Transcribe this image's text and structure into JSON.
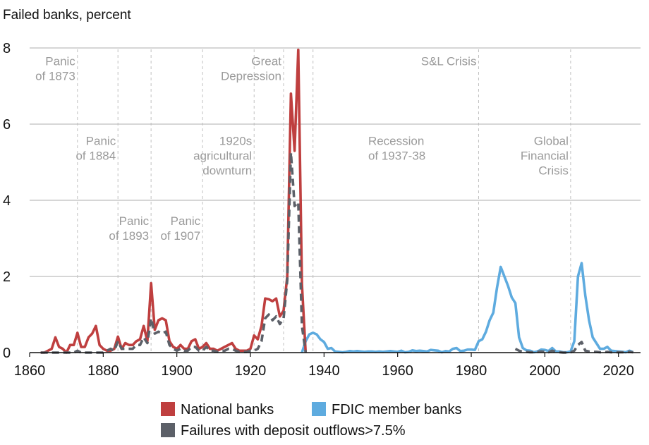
{
  "chart_data": {
    "type": "line",
    "title": "",
    "ylabel": "Failed banks, percent",
    "xlabel": "",
    "xlim": [
      1860,
      2026
    ],
    "ylim": [
      0,
      8
    ],
    "x_ticks": [
      1860,
      1880,
      1900,
      1920,
      1940,
      1960,
      1980,
      2000,
      2020
    ],
    "y_ticks": [
      0,
      2,
      4,
      6,
      8
    ],
    "grid": "horizontal",
    "legend_position": "bottom",
    "legend": {
      "row1": [
        "National banks",
        "FDIC member banks"
      ],
      "row2": [
        "Failures with deposit outflows>7.5%"
      ]
    },
    "colors": {
      "national": "#bf3f3f",
      "fdic": "#5eabdf",
      "outflows": "#5c6068",
      "grid": "#c8c8c8",
      "vline": "#c0c0c0",
      "annotation": "#9a9a9a"
    },
    "annotations": [
      {
        "year": 1873,
        "lines": [
          "Panic",
          "of 1873"
        ],
        "label_year": 1866.5,
        "label_y": 7.55
      },
      {
        "year": 1884,
        "lines": [
          "Panic",
          "of 1884"
        ],
        "label_year": 1877.5,
        "label_y": 5.45
      },
      {
        "year": 1893,
        "lines": [
          "Panic",
          "of 1893"
        ],
        "label_year": 1886.5,
        "label_y": 3.35
      },
      {
        "year": 1907,
        "lines": [
          "Panic",
          "of 1907"
        ],
        "label_year": 1900.5,
        "label_y": 3.35
      },
      {
        "year": 1921,
        "lines": [
          "1920s",
          "agricultural",
          "downturn"
        ],
        "label_year": 1913.5,
        "label_y": 5.45
      },
      {
        "year": 1929,
        "lines": [
          "Great",
          "Depression"
        ],
        "label_year": 1922,
        "label_y": 7.55
      },
      {
        "year": 1937,
        "lines": [
          "Recession",
          "of 1937-38"
        ],
        "label_year": 1952,
        "label_y": 5.45
      },
      {
        "year": 1982,
        "lines": [
          "S&L Crisis"
        ],
        "label_year": 1963,
        "label_y": 7.55
      },
      {
        "year": 2007,
        "lines": [
          "Global",
          "Financial",
          "Crisis"
        ],
        "label_year": 2000.5,
        "label_y": 5.45
      }
    ],
    "series": [
      {
        "name": "National banks",
        "x": [
          1863,
          1864,
          1865,
          1866,
          1867,
          1868,
          1869,
          1870,
          1871,
          1872,
          1873,
          1874,
          1875,
          1876,
          1877,
          1878,
          1879,
          1880,
          1881,
          1882,
          1883,
          1884,
          1885,
          1886,
          1887,
          1888,
          1889,
          1890,
          1891,
          1892,
          1893,
          1894,
          1895,
          1896,
          1897,
          1898,
          1899,
          1900,
          1901,
          1902,
          1903,
          1904,
          1905,
          1906,
          1907,
          1908,
          1909,
          1910,
          1911,
          1912,
          1913,
          1914,
          1915,
          1916,
          1917,
          1918,
          1919,
          1920,
          1921,
          1922,
          1923,
          1924,
          1925,
          1926,
          1927,
          1928,
          1929,
          1930,
          1931,
          1932,
          1933,
          1934,
          1935
        ],
        "values": [
          0.0,
          0.0,
          0.05,
          0.1,
          0.4,
          0.15,
          0.1,
          0.0,
          0.2,
          0.2,
          0.52,
          0.15,
          0.15,
          0.4,
          0.5,
          0.7,
          0.2,
          0.1,
          0.05,
          0.05,
          0.1,
          0.42,
          0.1,
          0.25,
          0.2,
          0.2,
          0.3,
          0.35,
          0.7,
          0.3,
          1.82,
          0.6,
          0.85,
          0.9,
          0.85,
          0.3,
          0.15,
          0.1,
          0.2,
          0.1,
          0.1,
          0.3,
          0.35,
          0.1,
          0.15,
          0.25,
          0.1,
          0.1,
          0.05,
          0.1,
          0.15,
          0.2,
          0.25,
          0.1,
          0.05,
          0.05,
          0.05,
          0.1,
          0.45,
          0.35,
          0.7,
          1.42,
          1.4,
          1.35,
          1.42,
          0.95,
          1.1,
          2.0,
          6.8,
          5.3,
          7.95,
          1.8,
          0.0
        ]
      },
      {
        "name": "FDIC member banks",
        "x": [
          1934,
          1935,
          1936,
          1937,
          1938,
          1939,
          1940,
          1941,
          1942,
          1943,
          1944,
          1945,
          1946,
          1947,
          1948,
          1949,
          1950,
          1951,
          1952,
          1953,
          1954,
          1955,
          1956,
          1957,
          1958,
          1959,
          1960,
          1961,
          1962,
          1963,
          1964,
          1965,
          1966,
          1967,
          1968,
          1969,
          1970,
          1971,
          1972,
          1973,
          1974,
          1975,
          1976,
          1977,
          1978,
          1979,
          1980,
          1981,
          1982,
          1983,
          1984,
          1985,
          1986,
          1987,
          1988,
          1989,
          1990,
          1991,
          1992,
          1993,
          1994,
          1995,
          1996,
          1997,
          1998,
          1999,
          2000,
          2001,
          2002,
          2003,
          2004,
          2005,
          2006,
          2007,
          2008,
          2009,
          2010,
          2011,
          2012,
          2013,
          2014,
          2015,
          2016,
          2017,
          2018,
          2019,
          2020,
          2021,
          2022,
          2023,
          2024
        ],
        "values": [
          0.0,
          0.3,
          0.48,
          0.52,
          0.48,
          0.35,
          0.28,
          0.1,
          0.12,
          0.03,
          0.02,
          0.01,
          0.02,
          0.04,
          0.03,
          0.04,
          0.03,
          0.02,
          0.03,
          0.03,
          0.02,
          0.03,
          0.02,
          0.03,
          0.04,
          0.03,
          0.02,
          0.05,
          0.01,
          0.02,
          0.06,
          0.04,
          0.05,
          0.04,
          0.03,
          0.07,
          0.06,
          0.05,
          0.01,
          0.04,
          0.03,
          0.1,
          0.12,
          0.04,
          0.05,
          0.08,
          0.08,
          0.07,
          0.3,
          0.35,
          0.55,
          0.85,
          1.05,
          1.7,
          2.25,
          2.0,
          1.75,
          1.45,
          1.3,
          0.4,
          0.12,
          0.06,
          0.05,
          0.01,
          0.03,
          0.08,
          0.07,
          0.04,
          0.12,
          0.03,
          0.03,
          0.01,
          0.01,
          0.03,
          0.3,
          2.0,
          2.35,
          1.5,
          0.85,
          0.4,
          0.25,
          0.1,
          0.1,
          0.15,
          0.05,
          0.04,
          0.03,
          0.02,
          0.01,
          0.05,
          0.01
        ]
      },
      {
        "name": "Failures with deposit outflows>7.5%",
        "x": [
          1863,
          1864,
          1865,
          1866,
          1867,
          1868,
          1869,
          1870,
          1871,
          1872,
          1873,
          1874,
          1875,
          1876,
          1877,
          1878,
          1879,
          1880,
          1881,
          1882,
          1883,
          1884,
          1885,
          1886,
          1887,
          1888,
          1889,
          1890,
          1891,
          1892,
          1893,
          1894,
          1895,
          1896,
          1897,
          1898,
          1899,
          1900,
          1901,
          1902,
          1903,
          1904,
          1905,
          1906,
          1907,
          1908,
          1909,
          1910,
          1911,
          1912,
          1913,
          1914,
          1915,
          1916,
          1917,
          1918,
          1919,
          1920,
          1921,
          1922,
          1923,
          1924,
          1925,
          1926,
          1927,
          1928,
          1929,
          1930,
          1931,
          1932,
          1933,
          1934,
          1935
        ],
        "values": [
          0.0,
          0.0,
          0.0,
          0.0,
          0.0,
          0.0,
          0.0,
          0.0,
          0.0,
          0.0,
          0.05,
          0.0,
          0.0,
          0.0,
          0.0,
          0.0,
          0.0,
          0.0,
          0.05,
          0.1,
          0.05,
          0.3,
          0.1,
          0.1,
          0.1,
          0.1,
          0.2,
          0.2,
          0.4,
          0.25,
          0.9,
          0.5,
          0.55,
          0.5,
          0.55,
          0.2,
          0.1,
          0.05,
          0.1,
          0.05,
          0.05,
          0.15,
          0.15,
          0.05,
          0.05,
          0.15,
          0.05,
          0.05,
          0.02,
          0.05,
          0.05,
          0.1,
          0.1,
          0.05,
          0.02,
          0.02,
          0.02,
          0.05,
          0.05,
          0.1,
          0.3,
          0.9,
          1.0,
          0.85,
          0.95,
          0.75,
          0.9,
          1.9,
          5.25,
          3.85,
          3.95,
          0.7,
          0.0
        ],
        "segment2_x": [
          1992,
          1993,
          1994,
          1995,
          1996,
          1997,
          1998,
          1999,
          2000,
          2001,
          2002,
          2003,
          2004,
          2005,
          2006,
          2007,
          2008,
          2009,
          2010,
          2011,
          2012,
          2013,
          2014,
          2015,
          2016,
          2017,
          2018,
          2019,
          2020,
          2021,
          2022,
          2023,
          2024
        ],
        "segment2_values": [
          0.1,
          0.05,
          0.02,
          0.02,
          0.01,
          0.01,
          0.02,
          0.03,
          0.02,
          0.01,
          0.05,
          0.02,
          0.01,
          0.0,
          0.0,
          0.01,
          0.05,
          0.2,
          0.28,
          0.05,
          0.03,
          0.02,
          0.02,
          0.01,
          0.01,
          0.02,
          0.01,
          0.01,
          0.01,
          0.01,
          0.01,
          0.02,
          0.01
        ]
      }
    ]
  }
}
